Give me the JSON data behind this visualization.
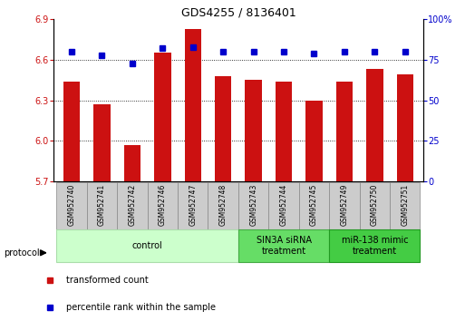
{
  "title": "GDS4255 / 8136401",
  "samples": [
    "GSM952740",
    "GSM952741",
    "GSM952742",
    "GSM952746",
    "GSM952747",
    "GSM952748",
    "GSM952743",
    "GSM952744",
    "GSM952745",
    "GSM952749",
    "GSM952750",
    "GSM952751"
  ],
  "transformed_counts": [
    6.44,
    6.27,
    5.97,
    6.65,
    6.83,
    6.48,
    6.45,
    6.44,
    6.3,
    6.44,
    6.53,
    6.49
  ],
  "percentile_ranks": [
    80,
    78,
    73,
    82,
    83,
    80,
    80,
    80,
    79,
    80,
    80,
    80
  ],
  "bar_color": "#cc1111",
  "dot_color": "#0000cc",
  "ylim_left": [
    5.7,
    6.9
  ],
  "ylim_right": [
    0,
    100
  ],
  "yticks_left": [
    5.7,
    6.0,
    6.3,
    6.6,
    6.9
  ],
  "yticks_right": [
    0,
    25,
    50,
    75,
    100
  ],
  "grid_values": [
    6.0,
    6.3,
    6.6
  ],
  "groups": [
    {
      "label": "control",
      "start": 0,
      "end": 6,
      "color": "#ccffcc",
      "border": "#aaddaa"
    },
    {
      "label": "SIN3A siRNA\ntreatment",
      "start": 6,
      "end": 9,
      "color": "#66dd66",
      "border": "#44aa44"
    },
    {
      "label": "miR-138 mimic\ntreatment",
      "start": 9,
      "end": 12,
      "color": "#44cc44",
      "border": "#229922"
    }
  ],
  "protocol_label": "protocol",
  "legend_red_label": "transformed count",
  "legend_blue_label": "percentile rank within the sample",
  "bar_width": 0.55
}
